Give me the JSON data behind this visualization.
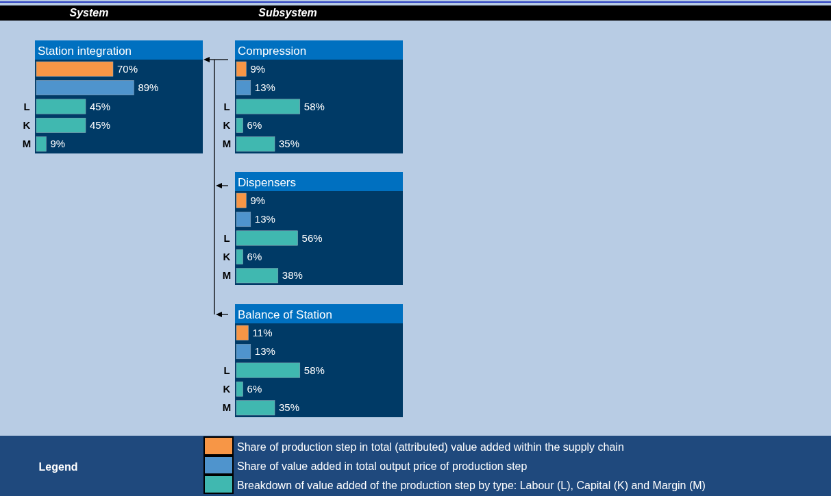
{
  "chart_data": [
    {
      "type": "bar",
      "orientation": "horizontal",
      "title": "Station integration",
      "annotations": [
        "System"
      ],
      "legend": "bottom",
      "legend_title": "Legend",
      "categories": [
        null,
        null,
        "L",
        "K",
        "M"
      ],
      "data_labels": true,
      "series": [
        {
          "name": "Share of production step in total (attributed) value added within the supply chain",
          "color": "#f79646",
          "values": [
            70,
            null,
            null,
            null,
            null
          ],
          "value_labels": [
            "70%",
            null,
            null,
            null,
            null
          ]
        },
        {
          "name": "Share of value added in total output price of production step",
          "color": "#4f94cd",
          "values": [
            null,
            89,
            null,
            null,
            null
          ],
          "value_labels": [
            null,
            "89%",
            null,
            null,
            null
          ]
        },
        {
          "name": "Breakdown of value added of the production step by type: Labour (L), Capital (K) and Margin (M)",
          "color": "#40b8b0",
          "values": [
            null,
            null,
            45,
            45,
            9
          ],
          "value_labels": [
            null,
            null,
            "45%",
            "45%",
            "9%"
          ]
        }
      ]
    },
    {
      "type": "bar",
      "orientation": "horizontal",
      "title": "Compression",
      "annotations": [
        "Subsystem"
      ],
      "categories": [
        null,
        null,
        "L",
        "K",
        "M"
      ],
      "data_labels": true,
      "series": [
        {
          "color": "#f79646",
          "values": [
            9,
            null,
            null,
            null,
            null
          ],
          "value_labels": [
            "9%",
            null,
            null,
            null,
            null
          ]
        },
        {
          "color": "#4f94cd",
          "values": [
            null,
            13,
            null,
            null,
            null
          ],
          "value_labels": [
            null,
            "13%",
            null,
            null,
            null
          ]
        },
        {
          "color": "#40b8b0",
          "values": [
            null,
            null,
            58,
            6,
            35
          ],
          "value_labels": [
            null,
            null,
            "58%",
            "6%",
            "35%"
          ]
        }
      ]
    },
    {
      "type": "bar",
      "orientation": "horizontal",
      "title": "Dispensers",
      "categories": [
        null,
        null,
        "L",
        "K",
        "M"
      ],
      "data_labels": true,
      "series": [
        {
          "color": "#f79646",
          "values": [
            9,
            null,
            null,
            null,
            null
          ],
          "value_labels": [
            "9%",
            null,
            null,
            null,
            null
          ]
        },
        {
          "color": "#4f94cd",
          "values": [
            null,
            13,
            null,
            null,
            null
          ],
          "value_labels": [
            null,
            "13%",
            null,
            null,
            null
          ]
        },
        {
          "color": "#40b8b0",
          "values": [
            null,
            null,
            56,
            6,
            38
          ],
          "value_labels": [
            null,
            null,
            "56%",
            "6%",
            "38%"
          ]
        }
      ]
    },
    {
      "type": "bar",
      "orientation": "horizontal",
      "title": "Balance of Station",
      "categories": [
        null,
        null,
        "L",
        "K",
        "M"
      ],
      "data_labels": true,
      "series": [
        {
          "color": "#f79646",
          "values": [
            11,
            null,
            null,
            null,
            null
          ],
          "value_labels": [
            "11%",
            null,
            null,
            null,
            null
          ]
        },
        {
          "color": "#4f94cd",
          "values": [
            null,
            13,
            null,
            null,
            null
          ],
          "value_labels": [
            null,
            "13%",
            null,
            null,
            null
          ]
        },
        {
          "color": "#40b8b0",
          "values": [
            null,
            null,
            58,
            6,
            35
          ],
          "value_labels": [
            null,
            null,
            "58%",
            "6%",
            "35%"
          ]
        }
      ]
    }
  ]
}
